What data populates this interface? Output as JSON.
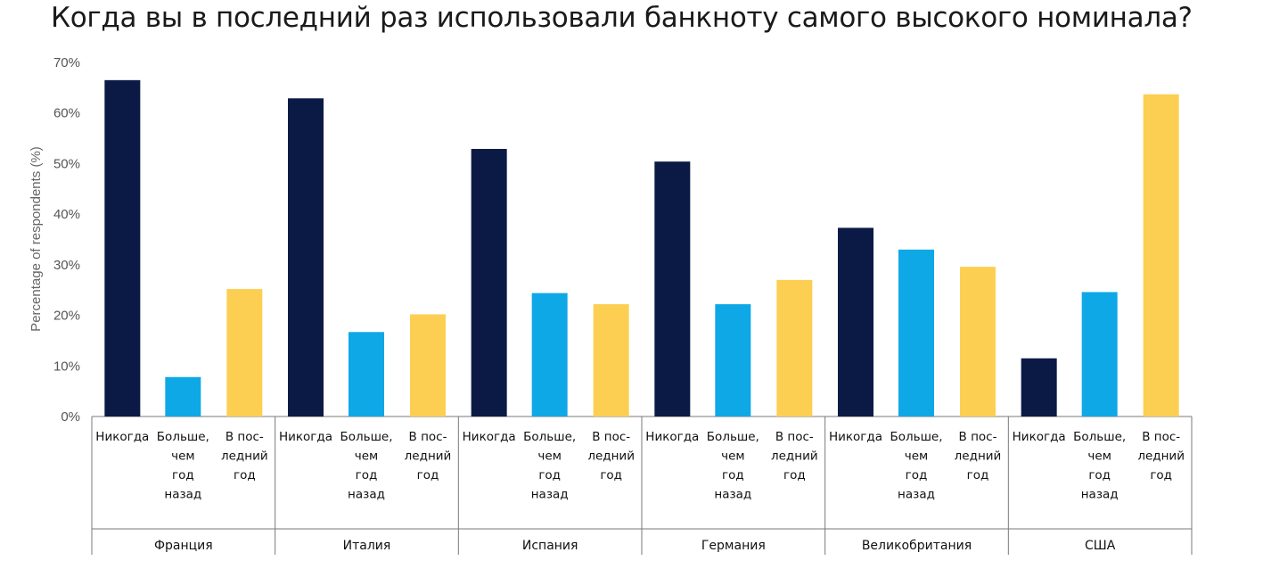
{
  "chart_data": {
    "type": "bar",
    "title": "Когда вы в последний раз использовали банкноту самого высокого номинала?",
    "ylabel": "Percentage of respondents (%)",
    "ylim": [
      0,
      70
    ],
    "yticks": [
      "0%",
      "10%",
      "20%",
      "30%",
      "40%",
      "50%",
      "60%",
      "70%"
    ],
    "grid": false,
    "category_labels": [
      [
        "Никогда"
      ],
      [
        "Больше,",
        "чем",
        "год",
        "назад"
      ],
      [
        "В пос-",
        "ледний",
        "год"
      ]
    ],
    "colors": [
      "#0b1a45",
      "#0fa8e6",
      "#fccf52"
    ],
    "groups": [
      {
        "name": "Франция",
        "values": [
          66.5,
          7.8,
          25.2
        ]
      },
      {
        "name": "Италия",
        "values": [
          62.9,
          16.7,
          20.2
        ]
      },
      {
        "name": "Испания",
        "values": [
          52.9,
          24.4,
          22.2
        ]
      },
      {
        "name": "Германия",
        "values": [
          50.4,
          22.2,
          27.0
        ]
      },
      {
        "name": "Великобритания",
        "values": [
          37.3,
          33.0,
          29.6
        ]
      },
      {
        "name": "США",
        "values": [
          11.5,
          24.6,
          63.7
        ]
      }
    ]
  }
}
